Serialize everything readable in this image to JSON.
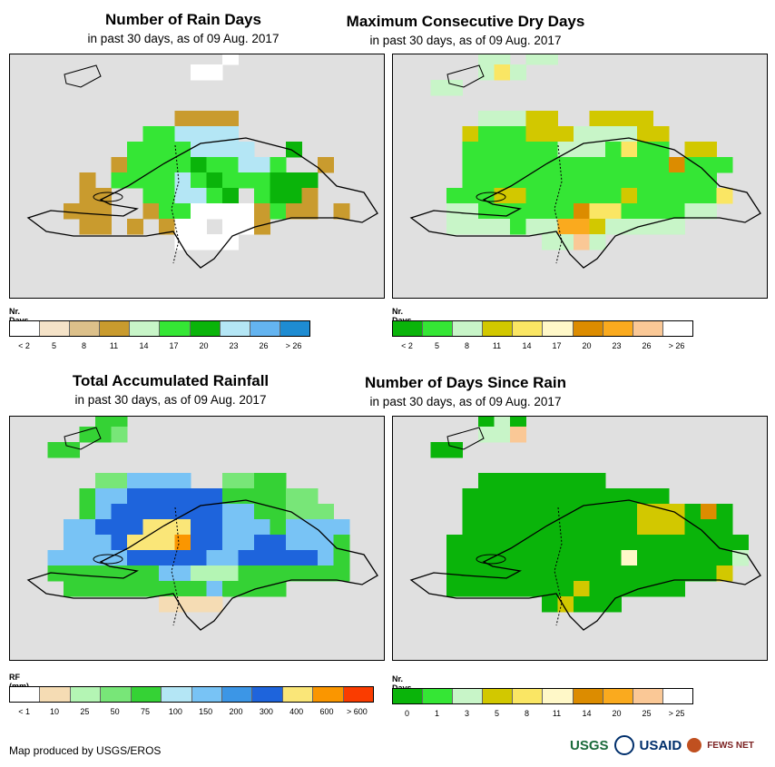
{
  "footer": {
    "credit": "Map produced by USGS/EROS",
    "logo_usgs": "USGS",
    "logo_usaid": "USAID",
    "logo_fews": "FEWS NET"
  },
  "panels": [
    {
      "id": "rain-days",
      "title": "Number of Rain Days",
      "subtitle": "in past 30 days, as of 09 Aug. 2017",
      "legend_title": "Nr. Days",
      "legend_colors": [
        "#ffffff",
        "#f5e3c8",
        "#dcc08a",
        "#c99b2e",
        "#c8f5c8",
        "#35e635",
        "#0ab40a",
        "#b4e6f5",
        "#64b4f0",
        "#1e8cd2"
      ],
      "legend_labels": [
        "< 2",
        "5",
        "8",
        "11",
        "14",
        "17",
        "20",
        "23",
        "26",
        "> 26"
      ],
      "grid": [
        "...........aq.......",
        "...ll.....qq........",
        "....aaa.............",
        "....................",
        "....bbbb.cccc.bbbb..",
        "....bbbgghhhhbbbb...",
        "...bbbgggghhhhbbfbb.",
        "...bbcggggfgghhgbbc.",
        "..bcbgggghgfgggfffb.",
        "..bccbbgghhgfbgffcbb",
        "..cccbbcggqqqqcgccbc",
        "..bccbcbcqqaqqcbbbb.",
        "........bqqqq......."
      ]
    },
    {
      "id": "consecutive-dry-days",
      "title": "Maximum Consecutive Dry Days",
      "subtitle": "in past 30 days, as of 09 Aug. 2017",
      "legend_title": "Nr. Days",
      "legend_colors": [
        "#0ab40a",
        "#35e635",
        "#c8f5c8",
        "#d2c800",
        "#fae664",
        "#fff8c8",
        "#dc8c00",
        "#faaa1e",
        "#fac896",
        "#ffffff"
      ],
      "legend_labels": [
        "< 2",
        "5",
        "8",
        "11",
        "14",
        "17",
        "20",
        "23",
        "26",
        "> 26"
      ],
      "grid": [
        "....ss.ss...........",
        "....sqs.............",
        ".ss.................",
        "....................",
        "....ssspp..pppp.....",
        "...pgggpppsssspp....",
        "...ggggggsssgqgg.pp.",
        "...gggggggggggggtggg",
        "...gggggggggggggggg.",
        "..gggppggggggpgggggq",
        "..ssggggggtqqggggss.",
        "..ssssgssuupsssss...",
        "........ssvs........"
      ]
    },
    {
      "id": "total-rainfall",
      "title": "Total Accumulated Rainfall",
      "subtitle": "in past 30 days, as of 09 Aug. 2017",
      "legend_title": "RF (mm)",
      "legend_colors": [
        "#ffffff",
        "#f5dcb4",
        "#b4f5b4",
        "#78e678",
        "#35d235",
        "#b4e6f5",
        "#78c3f5",
        "#3c96e6",
        "#1e64dc",
        "#fae678",
        "#fa9600",
        "#fa3c00"
      ],
      "legend_labels": [
        "< 1",
        "10",
        "25",
        "50",
        "75",
        "100",
        "150",
        "200",
        "300",
        "400",
        "600",
        "> 600"
      ],
      "grid": [
        "....ee..............",
        "...eed..............",
        ".ee.................",
        "....................",
        "....ddffff..ddee....",
        "...effjjjjjjeeeedd..",
        "...efjjjjjjjffeeddd.",
        "..ffjjjwwwjjfffeffff",
        "..fffjwwwxjjffjjfffe",
        ".fffffjjjjjffjjjjjfe",
        ".eeeeeeeffgggeeeeeee",
        "..eeeeeeeeefeeee....",
        "........aaaa........"
      ]
    },
    {
      "id": "days-since-rain",
      "title": "Number of Days Since Rain",
      "subtitle": "in past 30 days, as of 09 Aug. 2017",
      "legend_title": "Nr. Days",
      "legend_colors": [
        "#0ab40a",
        "#35e635",
        "#c8f5c8",
        "#d2c800",
        "#fae664",
        "#fff8c8",
        "#dc8c00",
        "#faaa1e",
        "#fac896",
        "#ffffff"
      ],
      "legend_labels": [
        "0",
        "1",
        "3",
        "5",
        "8",
        "11",
        "14",
        "20",
        "25",
        "> 25"
      ],
      "grid": [
        "....gsg.............",
        "....ssv.............",
        ".gg.................",
        "....................",
        "....gggggggg..........",
        "...ggggggggggggg....",
        "...gggggggggggpppgtg",
        "...gggggggggggpppggg",
        "..ggggggggggggggggggg",
        "..gggggggggggwggggggs",
        "..gggggggggggggggggp.",
        "..ggggggggpgggggg...",
        "........gpggg......."
      ]
    }
  ]
}
